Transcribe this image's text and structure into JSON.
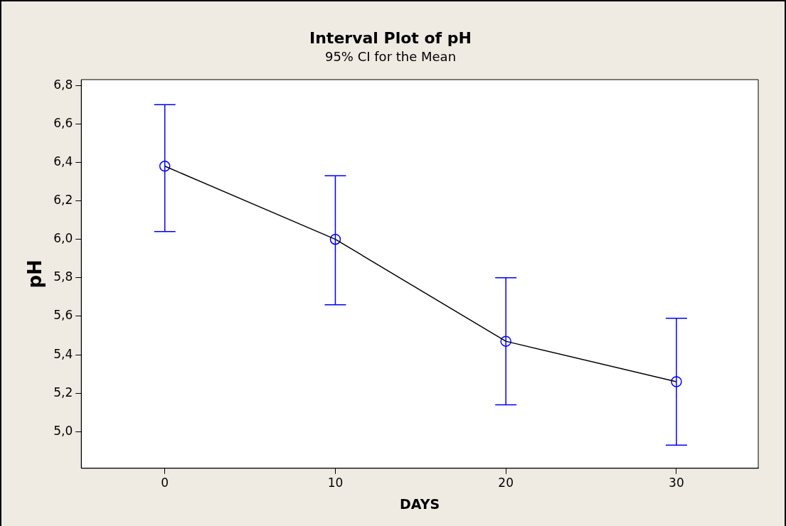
{
  "chart_data": {
    "type": "line",
    "title": "Interval Plot of pH",
    "subtitle": "95% CI for the Mean",
    "xlabel": "DAYS",
    "ylabel": "pH",
    "x": [
      0,
      10,
      20,
      30
    ],
    "series": [
      {
        "color": "#000000",
        "marker": "none",
        "values": [
          6.38,
          6.0,
          5.47,
          5.26
        ]
      },
      {
        "type": "scatter",
        "color": "#0000ff",
        "marker": "circle",
        "values": [
          6.38,
          6.0,
          5.47,
          5.26
        ],
        "errors": [
          [
            6.04,
            6.7
          ],
          [
            5.66,
            6.33
          ],
          [
            5.14,
            5.8
          ],
          [
            4.93,
            5.59
          ]
        ]
      }
    ],
    "xlim": [
      -4.9,
      34.8
    ],
    "xticks": [
      0,
      10,
      20,
      30
    ],
    "ylim": [
      4.81,
      6.83
    ],
    "yticks": [
      {
        "value": 5.0,
        "label": "5,0"
      },
      {
        "value": 5.2,
        "label": "5,2"
      },
      {
        "value": 5.4,
        "label": "5,4"
      },
      {
        "value": 5.6,
        "label": "5,6"
      },
      {
        "value": 5.8,
        "label": "5,8"
      },
      {
        "value": 6.0,
        "label": "6,0"
      },
      {
        "value": 6.2,
        "label": "6,2"
      },
      {
        "value": 6.4,
        "label": "6,4"
      },
      {
        "value": 6.6,
        "label": "6,6"
      },
      {
        "value": 6.8,
        "label": "6,8"
      }
    ],
    "grid": false,
    "legend": false
  }
}
